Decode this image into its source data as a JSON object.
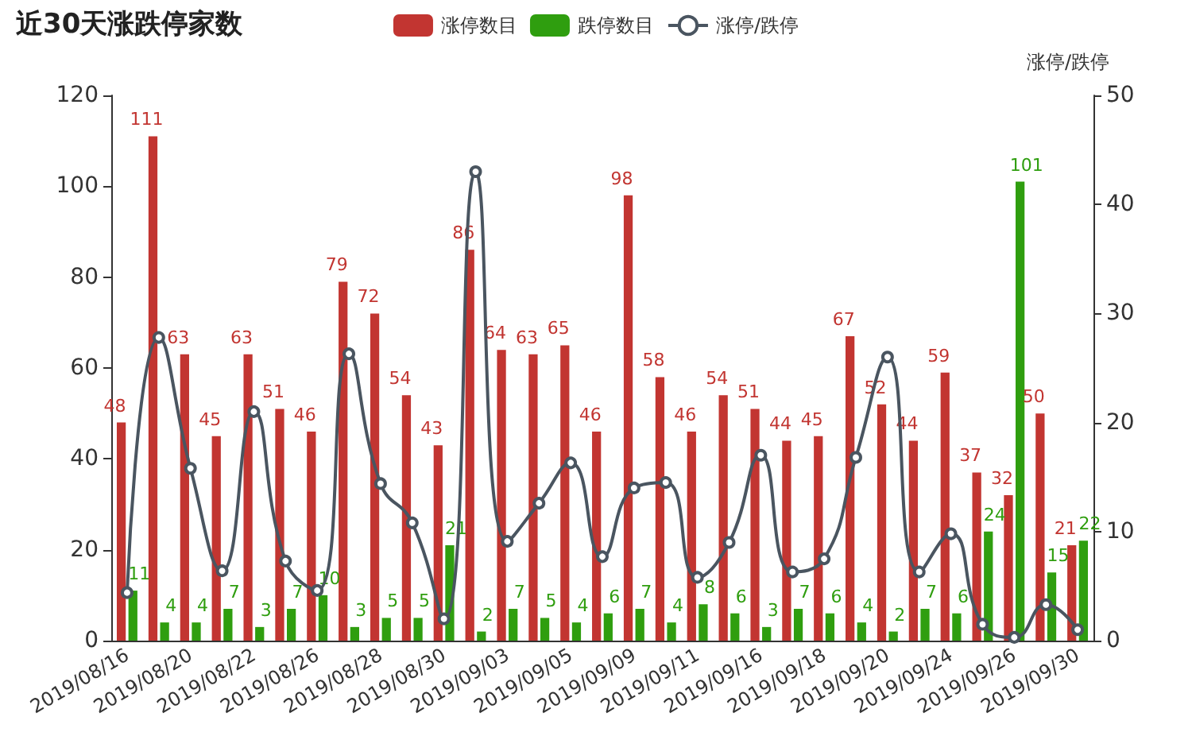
{
  "chart_data": {
    "type": "bar",
    "title": "近30天涨跌停家数",
    "y2label": "涨停/跌停",
    "categories": [
      "2019/08/16",
      null,
      "2019/08/20",
      null,
      "2019/08/22",
      null,
      "2019/08/26",
      null,
      "2019/08/28",
      null,
      "2019/08/30",
      null,
      "2019/09/03",
      null,
      "2019/09/05",
      null,
      "2019/09/09",
      null,
      "2019/09/11",
      null,
      "2019/09/16",
      null,
      "2019/09/18",
      null,
      "2019/09/20",
      null,
      "2019/09/24",
      null,
      "2019/09/26",
      null,
      "2019/09/30"
    ],
    "series": [
      {
        "name": "涨停数目",
        "color": "#c23531",
        "data_labels": true,
        "values": [
          48,
          111,
          63,
          45,
          63,
          51,
          46,
          79,
          72,
          54,
          43,
          86,
          64,
          63,
          65,
          46,
          98,
          58,
          46,
          54,
          51,
          44,
          45,
          67,
          52,
          44,
          59,
          37,
          32,
          50,
          21
        ]
      },
      {
        "name": "跌停数目",
        "color": "#2f9e0f",
        "data_labels": true,
        "values": [
          11,
          4,
          4,
          7,
          3,
          7,
          10,
          3,
          5,
          5,
          21,
          2,
          7,
          5,
          4,
          6,
          7,
          4,
          8,
          6,
          3,
          7,
          6,
          4,
          2,
          7,
          6,
          24,
          101,
          15,
          22
        ]
      },
      {
        "name": "涨停/跌停",
        "type": "line",
        "axis": "y2",
        "color": "#4a5560",
        "marker": "circle",
        "values": [
          4.4,
          27.8,
          15.8,
          6.4,
          21,
          7.3,
          4.6,
          26.3,
          14.4,
          10.8,
          2,
          43,
          9.1,
          12.6,
          16.3,
          7.7,
          14,
          14.5,
          5.8,
          9,
          17,
          6.3,
          7.5,
          16.8,
          26,
          6.3,
          9.8,
          1.5,
          0.3,
          3.3,
          1
        ]
      }
    ],
    "ylim": [
      0,
      120
    ],
    "yticks": [
      0,
      20,
      40,
      60,
      80,
      100,
      120
    ],
    "y2lim": [
      0,
      50
    ],
    "y2ticks": [
      0,
      10,
      20,
      30,
      40,
      50
    ],
    "grid": false,
    "legend": "top"
  }
}
